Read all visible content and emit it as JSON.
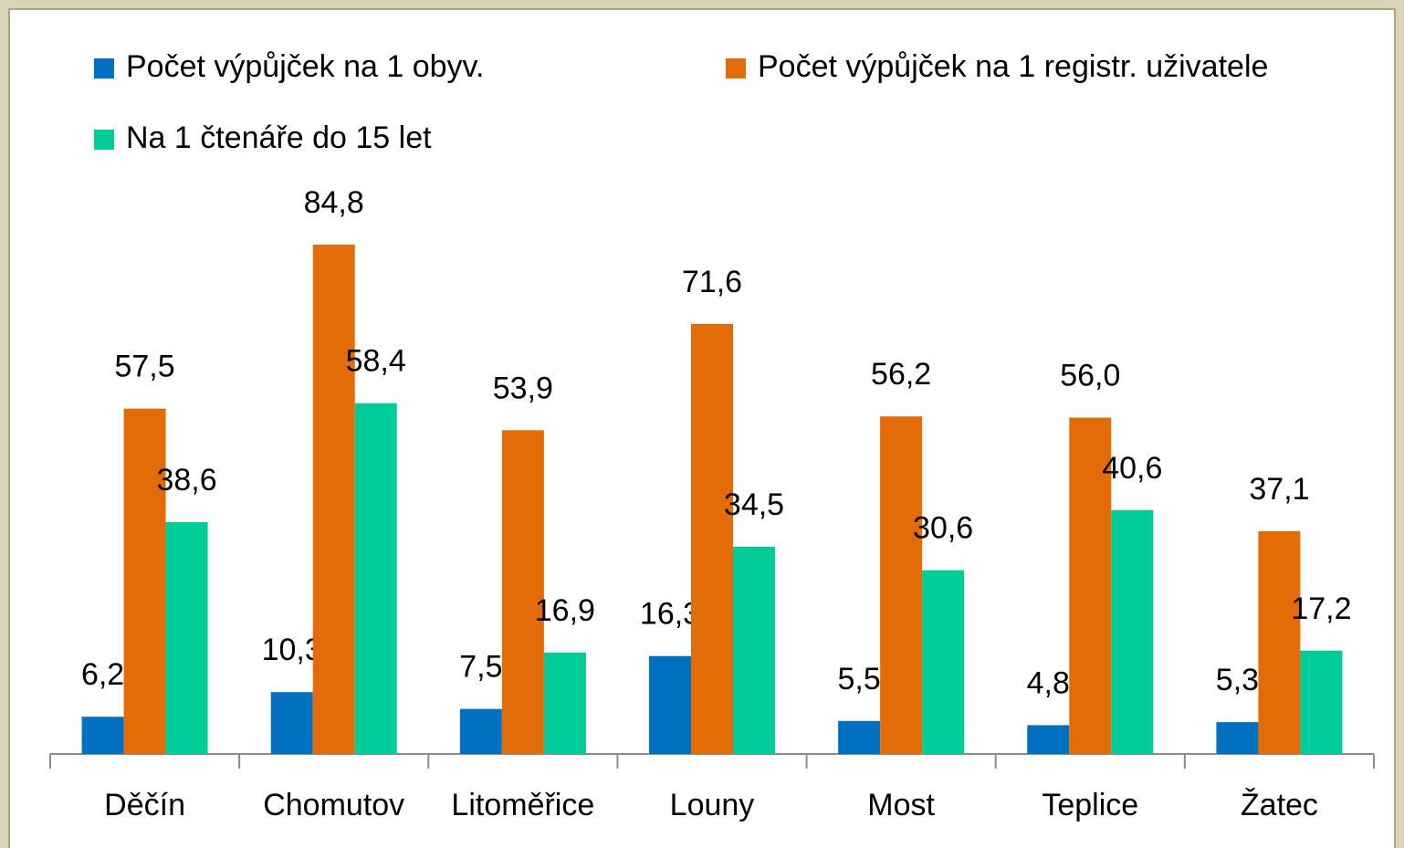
{
  "chart_data": {
    "type": "bar",
    "categories": [
      "Děčín",
      "Chomutov",
      "Litoměřice",
      "Louny",
      "Most",
      "Teplice",
      "Žatec"
    ],
    "series": [
      {
        "name": "Počet výpůjček na 1 obyv.",
        "color": "#0070c0",
        "values": [
          6.2,
          10.3,
          7.5,
          16.3,
          5.5,
          4.8,
          5.3
        ],
        "value_labels": [
          "6,2",
          "10,3",
          "7,5",
          "16,3",
          "5,5",
          "4,8",
          "5,3"
        ]
      },
      {
        "name": "Počet výpůjček na 1 registr. uživatele",
        "color": "#e36c09",
        "values": [
          57.5,
          84.8,
          53.9,
          71.6,
          56.2,
          56.0,
          37.1
        ],
        "value_labels": [
          "57,5",
          "84,8",
          "53,9",
          "71,6",
          "56,2",
          "56,0",
          "37,1"
        ]
      },
      {
        "name": "Na 1 čtenáře do 15 let",
        "color": "#00cc99",
        "values": [
          38.6,
          58.4,
          16.9,
          34.5,
          30.6,
          40.6,
          17.2
        ],
        "value_labels": [
          "38,6",
          "58,4",
          "16,9",
          "34,5",
          "30,6",
          "40,6",
          "17,2"
        ]
      }
    ]
  }
}
